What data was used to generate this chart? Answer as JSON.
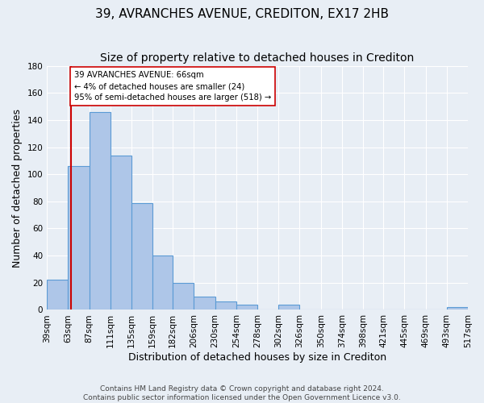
{
  "title": "39, AVRANCHES AVENUE, CREDITON, EX17 2HB",
  "subtitle": "Size of property relative to detached houses in Crediton",
  "xlabel": "Distribution of detached houses by size in Crediton",
  "ylabel": "Number of detached properties",
  "footer_line1": "Contains HM Land Registry data © Crown copyright and database right 2024.",
  "footer_line2": "Contains public sector information licensed under the Open Government Licence v3.0.",
  "bin_edges": [
    39,
    63,
    87,
    111,
    135,
    159,
    182,
    206,
    230,
    254,
    278,
    302,
    326,
    350,
    374,
    398,
    421,
    445,
    469,
    493,
    517
  ],
  "bin_labels": [
    "39sqm",
    "63sqm",
    "87sqm",
    "111sqm",
    "135sqm",
    "159sqm",
    "182sqm",
    "206sqm",
    "230sqm",
    "254sqm",
    "278sqm",
    "302sqm",
    "326sqm",
    "350sqm",
    "374sqm",
    "398sqm",
    "421sqm",
    "445sqm",
    "469sqm",
    "493sqm",
    "517sqm"
  ],
  "counts": [
    22,
    106,
    146,
    114,
    79,
    40,
    20,
    10,
    6,
    4,
    0,
    4,
    0,
    0,
    0,
    0,
    0,
    0,
    0,
    2
  ],
  "bar_color": "#aec6e8",
  "bar_edge_color": "#5b9bd5",
  "vline_x": 66,
  "vline_color": "#cc0000",
  "annotation_line1": "39 AVRANCHES AVENUE: 66sqm",
  "annotation_line2": "← 4% of detached houses are smaller (24)",
  "annotation_line3": "95% of semi-detached houses are larger (518) →",
  "annotation_box_edge_color": "#cc0000",
  "annotation_box_face_color": "#ffffff",
  "ylim": [
    0,
    180
  ],
  "yticks": [
    0,
    20,
    40,
    60,
    80,
    100,
    120,
    140,
    160,
    180
  ],
  "bg_color": "#e8eef5",
  "plot_bg_color": "#e8eef5",
  "grid_color": "#ffffff",
  "title_fontsize": 11,
  "subtitle_fontsize": 10,
  "label_fontsize": 9,
  "tick_fontsize": 7.5,
  "footer_fontsize": 6.5
}
